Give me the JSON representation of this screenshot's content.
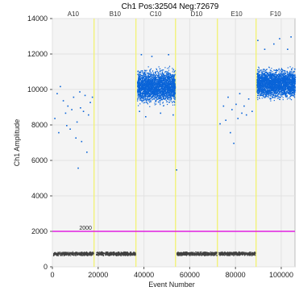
{
  "chart_data": {
    "type": "scatter",
    "title": "Ch1 Pos:32504 Neg:72679",
    "xlabel": "Event Number",
    "ylabel": "Ch1 Amplitude",
    "xlim": [
      0,
      106000
    ],
    "ylim": [
      0,
      14000
    ],
    "x_ticks": [
      0,
      20000,
      40000,
      60000,
      80000,
      100000
    ],
    "y_ticks": [
      0,
      2000,
      4000,
      6000,
      8000,
      10000,
      12000,
      14000
    ],
    "threshold": {
      "value": 2000,
      "label": "2000",
      "color": "#e020e0"
    },
    "well_boundaries": [
      18200,
      36500,
      53800,
      72100,
      89000
    ],
    "wells": [
      {
        "name": "A10",
        "x_center": 9100
      },
      {
        "name": "B10",
        "x_center": 27400
      },
      {
        "name": "C10",
        "x_center": 45100
      },
      {
        "name": "D10",
        "x_center": 63000
      },
      {
        "name": "E10",
        "x_center": 80500
      },
      {
        "name": "F10",
        "x_center": 97500
      }
    ],
    "series": [
      {
        "color": "#0a64d8",
        "clusters": [
          {
            "x_range": [
              37000,
              53500
            ],
            "y_range": [
              9000,
              11400
            ]
          },
          {
            "x_range": [
              89200,
              106000
            ],
            "y_range": [
              9300,
              11400
            ]
          }
        ],
        "outliers": [
          [
            800,
            8400
          ],
          [
            1800,
            9800
          ],
          [
            3200,
            10200
          ],
          [
            4500,
            9400
          ],
          [
            5500,
            8700
          ],
          [
            6500,
            9100
          ],
          [
            7500,
            7800
          ],
          [
            8200,
            8900
          ],
          [
            9000,
            9600
          ],
          [
            10000,
            7300
          ],
          [
            10500,
            8200
          ],
          [
            11000,
            5600
          ],
          [
            11700,
            9900
          ],
          [
            12500,
            7100
          ],
          [
            13300,
            8800
          ],
          [
            14000,
            9700
          ],
          [
            14800,
            6500
          ],
          [
            15500,
            8600
          ],
          [
            16300,
            9300
          ],
          [
            17200,
            9600
          ],
          [
            2500,
            7600
          ],
          [
            12000,
            9000
          ],
          [
            6000,
            8000
          ],
          [
            37800,
            8800
          ],
          [
            38600,
            12000
          ],
          [
            40500,
            8500
          ],
          [
            43200,
            11900
          ],
          [
            47000,
            8700
          ],
          [
            50500,
            12000
          ],
          [
            52500,
            8600
          ],
          [
            54000,
            5500
          ],
          [
            73000,
            8100
          ],
          [
            74500,
            9100
          ],
          [
            75500,
            8300
          ],
          [
            76500,
            9600
          ],
          [
            77500,
            7600
          ],
          [
            78200,
            8900
          ],
          [
            79000,
            7000
          ],
          [
            80000,
            9200
          ],
          [
            80800,
            8400
          ],
          [
            81600,
            9800
          ],
          [
            82500,
            8700
          ],
          [
            83500,
            9100
          ],
          [
            84500,
            8600
          ],
          [
            85500,
            9500
          ],
          [
            87000,
            8800
          ],
          [
            89500,
            12800
          ],
          [
            92500,
            12300
          ],
          [
            96500,
            12600
          ],
          [
            99000,
            12900
          ],
          [
            102500,
            12300
          ],
          [
            104000,
            13000
          ]
        ]
      },
      {
        "color": "#404040",
        "segments": [
          [
            300,
            17800
          ],
          [
            19000,
            36200
          ],
          [
            54200,
            71700
          ],
          [
            72600,
            88500
          ]
        ],
        "y_range": [
          640,
          880
        ]
      }
    ]
  }
}
